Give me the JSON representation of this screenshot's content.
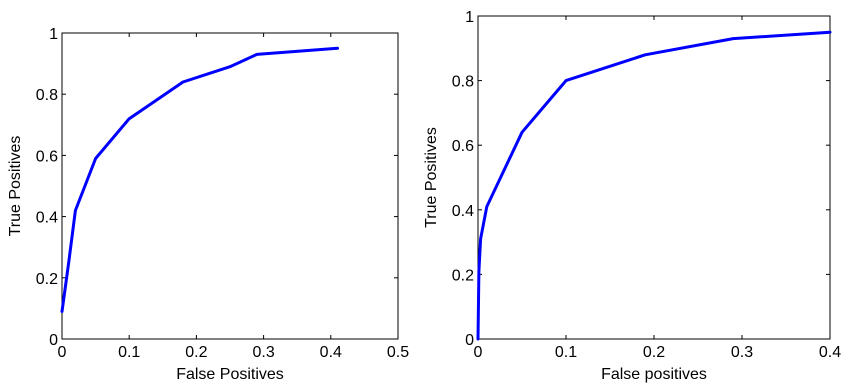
{
  "chart_data": [
    {
      "type": "line",
      "xlabel": "False Positives",
      "ylabel": "True Positives",
      "xlim": [
        0,
        0.5
      ],
      "ylim": [
        0,
        1
      ],
      "xticks": [
        0,
        0.1,
        0.2,
        0.3,
        0.4,
        0.5
      ],
      "yticks": [
        0,
        0.2,
        0.4,
        0.6,
        0.8,
        1
      ],
      "xtick_labels": [
        "0",
        "0.1",
        "0.2",
        "0.3",
        "0.4",
        "0.5"
      ],
      "ytick_labels": [
        "0",
        "0.2",
        "0.4",
        "0.6",
        "0.8",
        "1"
      ],
      "grid": false,
      "line_color": "#0000ff",
      "series": [
        {
          "x": [
            0,
            0.01,
            0.02,
            0.05,
            0.1,
            0.18,
            0.25,
            0.29,
            0.41
          ],
          "y": [
            0.09,
            0.25,
            0.42,
            0.59,
            0.72,
            0.84,
            0.89,
            0.93,
            0.95
          ]
        }
      ]
    },
    {
      "type": "line",
      "xlabel": "False positives",
      "ylabel": "True Positives",
      "xlim": [
        0,
        0.4
      ],
      "ylim": [
        0,
        1
      ],
      "xticks": [
        0,
        0.1,
        0.2,
        0.3,
        0.4
      ],
      "yticks": [
        0,
        0.2,
        0.4,
        0.6,
        0.8,
        1
      ],
      "xtick_labels": [
        "0",
        "0.1",
        "0.2",
        "0.3",
        "0.4"
      ],
      "ytick_labels": [
        "0",
        "0.2",
        "0.4",
        "0.6",
        "0.8",
        "1"
      ],
      "grid": false,
      "line_color": "#0000ff",
      "series": [
        {
          "x": [
            0,
            0.001,
            0.003,
            0.01,
            0.05,
            0.1,
            0.19,
            0.29,
            0.4
          ],
          "y": [
            0,
            0.21,
            0.31,
            0.41,
            0.64,
            0.8,
            0.88,
            0.93,
            0.95
          ]
        }
      ]
    }
  ]
}
